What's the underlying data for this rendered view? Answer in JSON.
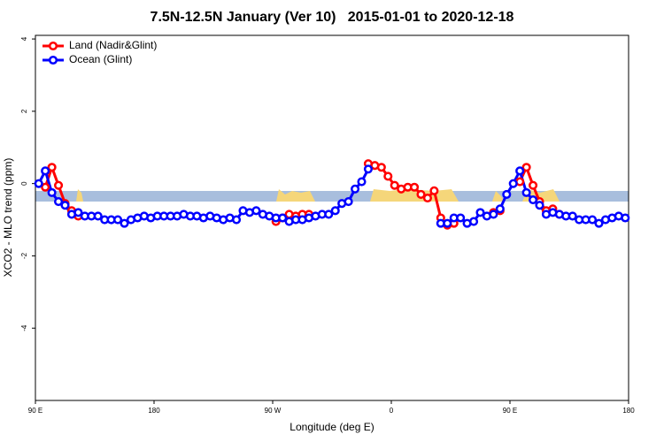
{
  "chart_data": {
    "type": "line",
    "title": "7.5N-12.5N January (Ver 10)   2015-01-01 to 2020-12-18",
    "xlabel": "Longitude (deg E)",
    "ylabel": "XCO2 - MLO trend (ppm)",
    "xlim": [
      90,
      540
    ],
    "xticks": [
      {
        "value": 90,
        "label": "90 E"
      },
      {
        "value": 180,
        "label": "180"
      },
      {
        "value": 270,
        "label": "90 W"
      },
      {
        "value": 360,
        "label": "0"
      },
      {
        "value": 450,
        "label": "90 E"
      },
      {
        "value": 540,
        "label": "180"
      }
    ],
    "ylim": [
      -6,
      4.1
    ],
    "yticks": [
      -4,
      -2,
      0,
      2,
      4
    ],
    "legend": "top-left",
    "x": [
      92.5,
      97.5,
      102.5,
      107.5,
      112.5,
      117.5,
      122.5,
      127.5,
      132.5,
      137.5,
      142.5,
      147.5,
      152.5,
      157.5,
      162.5,
      167.5,
      172.5,
      177.5,
      182.5,
      187.5,
      192.5,
      197.5,
      202.5,
      207.5,
      212.5,
      217.5,
      222.5,
      227.5,
      232.5,
      237.5,
      242.5,
      247.5,
      252.5,
      257.5,
      262.5,
      267.5,
      272.5,
      277.5,
      282.5,
      287.5,
      292.5,
      297.5,
      302.5,
      307.5,
      312.5,
      317.5,
      322.5,
      327.5,
      332.5,
      337.5,
      342.5,
      347.5,
      352.5,
      357.5,
      362.5,
      367.5,
      372.5,
      377.5,
      382.5,
      387.5,
      392.5,
      397.5,
      402.5,
      407.5,
      412.5,
      417.5,
      422.5,
      427.5,
      432.5,
      437.5,
      442.5,
      447.5,
      452.5,
      457.5,
      462.5,
      467.5,
      472.5,
      477.5,
      482.5,
      487.5,
      492.5,
      497.5,
      502.5,
      507.5,
      512.5,
      517.5,
      522.5,
      527.5,
      532.5,
      537.5
    ],
    "series": [
      {
        "name": "Land (Nadir&Glint)",
        "color": "#ff0000",
        "values": [
          null,
          -0.1,
          0.45,
          -0.05,
          -0.55,
          -0.75,
          -0.9,
          null,
          null,
          null,
          null,
          null,
          null,
          null,
          null,
          null,
          null,
          null,
          null,
          null,
          null,
          null,
          null,
          null,
          null,
          null,
          null,
          null,
          null,
          null,
          null,
          null,
          null,
          null,
          null,
          null,
          -1.05,
          -0.95,
          -0.85,
          -0.9,
          -0.85,
          -0.85,
          null,
          null,
          null,
          null,
          null,
          null,
          null,
          null,
          0.55,
          0.5,
          0.45,
          0.2,
          -0.05,
          -0.15,
          -0.1,
          -0.1,
          -0.3,
          -0.4,
          -0.2,
          -0.95,
          -1.15,
          -1.1,
          null,
          null,
          null,
          null,
          null,
          -0.8,
          -0.75,
          null,
          null,
          0.05,
          0.45,
          -0.05,
          -0.5,
          -0.75,
          -0.7,
          -0.85,
          null,
          null,
          null,
          null,
          null,
          null,
          null,
          null,
          null,
          null
        ]
      },
      {
        "name": "Ocean (Glint)",
        "color": "#0000ff",
        "values": [
          0.0,
          0.35,
          -0.25,
          -0.5,
          -0.6,
          -0.85,
          -0.8,
          -0.9,
          -0.9,
          -0.9,
          -1.0,
          -1.0,
          -1.0,
          -1.1,
          -1.0,
          -0.95,
          -0.9,
          -0.95,
          -0.9,
          -0.9,
          -0.9,
          -0.9,
          -0.85,
          -0.9,
          -0.9,
          -0.95,
          -0.9,
          -0.95,
          -1.0,
          -0.95,
          -1.0,
          -0.75,
          -0.8,
          -0.75,
          -0.85,
          -0.9,
          -0.95,
          -0.95,
          -1.05,
          -1.0,
          -1.0,
          -0.95,
          -0.9,
          -0.85,
          -0.85,
          -0.75,
          -0.55,
          -0.5,
          -0.15,
          0.05,
          0.4,
          null,
          null,
          null,
          null,
          null,
          null,
          null,
          null,
          null,
          null,
          -1.1,
          -1.1,
          -0.95,
          -0.95,
          -1.1,
          -1.05,
          -0.8,
          -0.9,
          -0.85,
          -0.7,
          -0.3,
          0.0,
          0.35,
          -0.25,
          -0.45,
          -0.6,
          -0.85,
          -0.8,
          -0.85,
          -0.9,
          -0.9,
          -1.0,
          -1.0,
          -1.0,
          -1.1,
          -1.0,
          -0.95,
          -0.9,
          -0.95
        ]
      }
    ]
  }
}
